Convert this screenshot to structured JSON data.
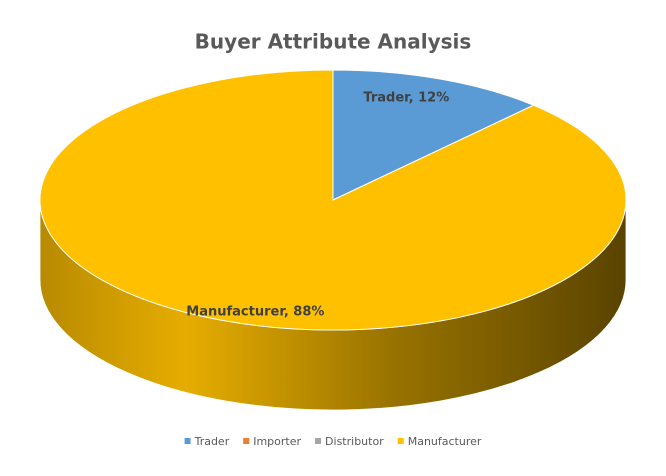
{
  "chart_data": {
    "type": "pie",
    "title": "Buyer Attribute Analysis",
    "categories": [
      "Trader",
      "Importer",
      "Distributor",
      "Manufacturer"
    ],
    "values": [
      12,
      0,
      0,
      88
    ],
    "value_labels": [
      "Trader, 12%",
      null,
      null,
      "Manufacturer, 88%"
    ],
    "colors": [
      "#5b9bd5",
      "#ed7d31",
      "#a5a5a5",
      "#ffc000"
    ],
    "legend": "bottom"
  }
}
